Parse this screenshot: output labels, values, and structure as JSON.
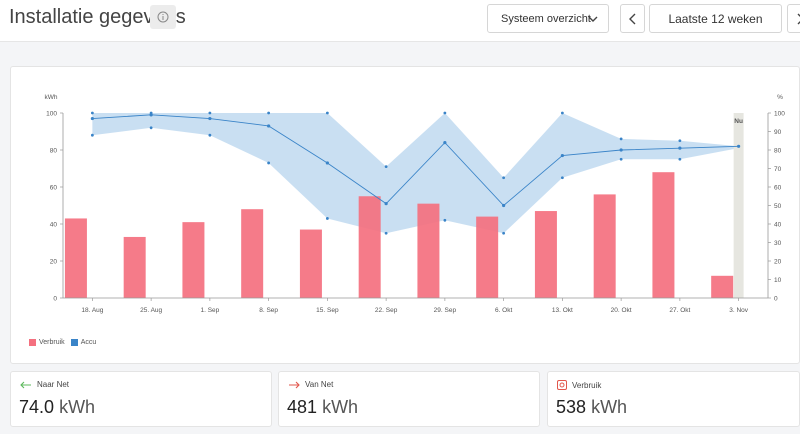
{
  "header": {
    "title": "Installatie gegevens",
    "view_select": "Systeem overzicht",
    "range_label": "Laatste 12 weken"
  },
  "colors": {
    "consumption": "#f4707f",
    "battery_line": "#3a84c8",
    "battery_band": "#c3dbf1"
  },
  "chart_data": {
    "type": "bar+line",
    "x": [
      "18. Aug",
      "25. Aug",
      "1. Sep",
      "8. Sep",
      "15. Sep",
      "22. Sep",
      "29. Sep",
      "6. Okt",
      "13. Okt",
      "20. Okt",
      "27. Okt",
      "3. Nov"
    ],
    "y_left_label": "kWh",
    "y_right_label": "%",
    "y_left_ticks": [
      "0",
      "20",
      "40",
      "60",
      "80",
      "100"
    ],
    "y_right_ticks": [
      "0",
      "10",
      "20",
      "30",
      "40",
      "50",
      "60",
      "70",
      "80",
      "90",
      "100"
    ],
    "ylim_left": [
      0,
      100
    ],
    "ylim_right": [
      0,
      100
    ],
    "now_label": "Nu",
    "series": [
      {
        "name": "Verbruik",
        "axis": "left",
        "kind": "bar",
        "values": [
          43,
          33,
          41,
          48,
          37,
          55,
          51,
          44,
          47,
          56,
          68,
          12
        ]
      },
      {
        "name": "Accu",
        "axis": "right",
        "kind": "line",
        "values": [
          97,
          99,
          97,
          93,
          73,
          51,
          84,
          50,
          77,
          80,
          81,
          82
        ],
        "min": [
          88,
          92,
          88,
          73,
          43,
          35,
          42,
          35,
          65,
          75,
          75,
          81
        ],
        "max": [
          100,
          100,
          100,
          100,
          100,
          71,
          100,
          65,
          100,
          86,
          85,
          82
        ]
      }
    ]
  },
  "legend": [
    {
      "label": "Verbruik"
    },
    {
      "label": "Accu"
    }
  ],
  "stats": [
    {
      "label": "Naar Net",
      "value": "74.0",
      "unit": "kWh"
    },
    {
      "label": "Van Net",
      "value": "481",
      "unit": "kWh"
    },
    {
      "label": "Verbruik",
      "value": "538",
      "unit": "kWh"
    }
  ]
}
